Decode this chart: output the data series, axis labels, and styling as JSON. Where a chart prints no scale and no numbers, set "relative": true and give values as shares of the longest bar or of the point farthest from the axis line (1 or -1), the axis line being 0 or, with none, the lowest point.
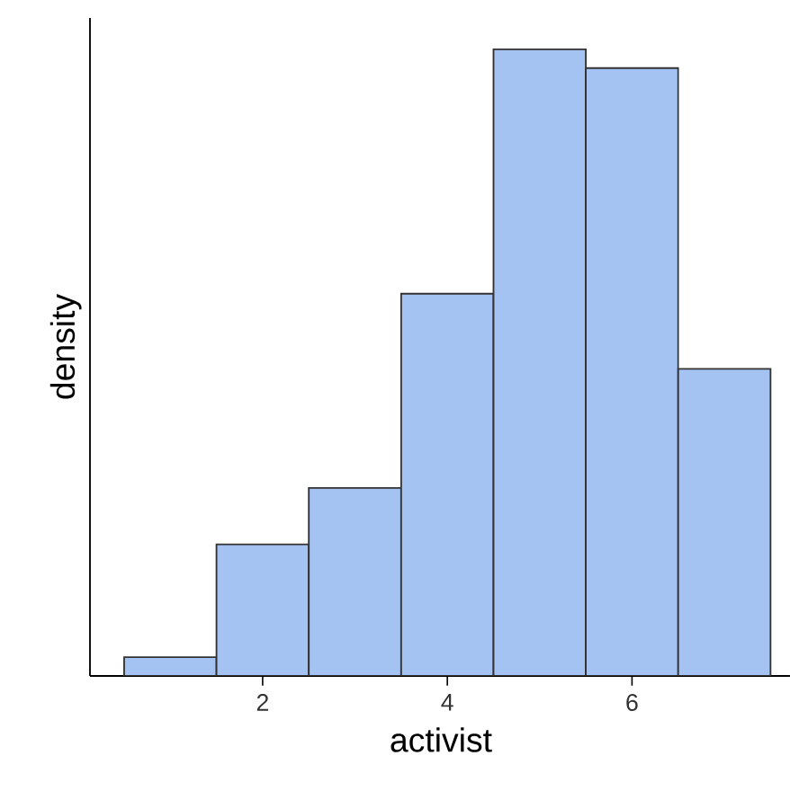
{
  "chart_data": {
    "type": "bar",
    "xlabel": "activist",
    "ylabel": "density",
    "relative": true,
    "x": [
      1,
      2,
      3,
      4,
      5,
      6,
      7
    ],
    "values": [
      0.03,
      0.21,
      0.3,
      0.61,
      1,
      0.97,
      0.49
    ],
    "color": "#a4c3f2",
    "xlim": [
      0.13,
      7.73
    ],
    "xticks": [
      {
        "value": 2,
        "label": "2"
      },
      {
        "value": 4,
        "label": "4"
      },
      {
        "value": 6,
        "label": "6"
      }
    ],
    "grid": false
  }
}
